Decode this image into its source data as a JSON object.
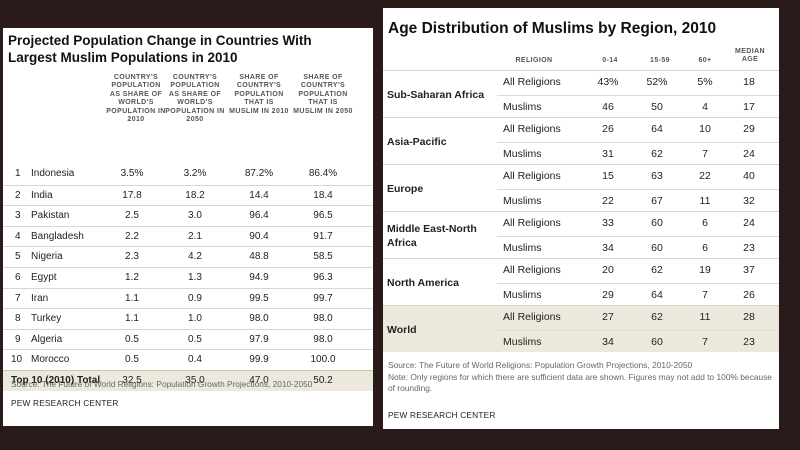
{
  "left": {
    "title": "Projected Population Change in Countries With Largest Muslim Populations in 2010",
    "headers": [
      "Country's population as share of world's population in 2010",
      "Country's population as share of world's population in 2050",
      "Share of country's population that is Muslim in 2010",
      "Share of country's population that is Muslim in 2050"
    ],
    "rows": [
      {
        "rank": "1",
        "country": "Indonesia",
        "v1": "3.5%",
        "v2": "3.2%",
        "v3": "87.2%",
        "v4": "86.4%"
      },
      {
        "rank": "2",
        "country": "India",
        "v1": "17.8",
        "v2": "18.2",
        "v3": "14.4",
        "v4": "18.4"
      },
      {
        "rank": "3",
        "country": "Pakistan",
        "v1": "2.5",
        "v2": "3.0",
        "v3": "96.4",
        "v4": "96.5"
      },
      {
        "rank": "4",
        "country": "Bangladesh",
        "v1": "2.2",
        "v2": "2.1",
        "v3": "90.4",
        "v4": "91.7"
      },
      {
        "rank": "5",
        "country": "Nigeria",
        "v1": "2.3",
        "v2": "4.2",
        "v3": "48.8",
        "v4": "58.5"
      },
      {
        "rank": "6",
        "country": "Egypt",
        "v1": "1.2",
        "v2": "1.3",
        "v3": "94.9",
        "v4": "96.3"
      },
      {
        "rank": "7",
        "country": "Iran",
        "v1": "1.1",
        "v2": "0.9",
        "v3": "99.5",
        "v4": "99.7"
      },
      {
        "rank": "8",
        "country": "Turkey",
        "v1": "1.1",
        "v2": "1.0",
        "v3": "98.0",
        "v4": "98.0"
      },
      {
        "rank": "9",
        "country": "Algeria",
        "v1": "0.5",
        "v2": "0.5",
        "v3": "97.9",
        "v4": "98.0"
      },
      {
        "rank": "10",
        "country": "Morocco",
        "v1": "0.5",
        "v2": "0.4",
        "v3": "99.9",
        "v4": "100.0"
      }
    ],
    "total": {
      "label": "Top 10 (2010) Total",
      "v1": "32.5",
      "v2": "35.0",
      "v3": "47.0",
      "v4": "50.2"
    },
    "source": "Source: The Future of World Religions: Population Growth Projections, 2010-2050",
    "org": "PEW RESEARCH CENTER"
  },
  "right": {
    "title": "Age Distribution of Muslims by Region, 2010",
    "headers": {
      "religion": "Religion",
      "c1": "0-14",
      "c2": "15-59",
      "c3": "60+",
      "c4": "Median age"
    },
    "groups": [
      {
        "region": "Sub-Saharan Africa",
        "rows": [
          {
            "religion": "All Religions",
            "v": [
              "43%",
              "52%",
              "5%",
              "18"
            ]
          },
          {
            "religion": "Muslims",
            "v": [
              "46",
              "50",
              "4",
              "17"
            ]
          }
        ]
      },
      {
        "region": "Asia-Pacific",
        "rows": [
          {
            "religion": "All Religions",
            "v": [
              "26",
              "64",
              "10",
              "29"
            ]
          },
          {
            "religion": "Muslims",
            "v": [
              "31",
              "62",
              "7",
              "24"
            ]
          }
        ]
      },
      {
        "region": "Europe",
        "rows": [
          {
            "religion": "All Religions",
            "v": [
              "15",
              "63",
              "22",
              "40"
            ]
          },
          {
            "religion": "Muslims",
            "v": [
              "22",
              "67",
              "11",
              "32"
            ]
          }
        ]
      },
      {
        "region": "Middle East-North Africa",
        "rows": [
          {
            "religion": "All Religions",
            "v": [
              "33",
              "60",
              "6",
              "24"
            ]
          },
          {
            "religion": "Muslims",
            "v": [
              "34",
              "60",
              "6",
              "23"
            ]
          }
        ]
      },
      {
        "region": "North America",
        "rows": [
          {
            "religion": "All Religions",
            "v": [
              "20",
              "62",
              "19",
              "37"
            ]
          },
          {
            "religion": "Muslims",
            "v": [
              "29",
              "64",
              "7",
              "26"
            ]
          }
        ]
      },
      {
        "region": "World",
        "highlight": true,
        "rows": [
          {
            "religion": "All Religions",
            "v": [
              "27",
              "62",
              "11",
              "28"
            ]
          },
          {
            "religion": "Muslims",
            "v": [
              "34",
              "60",
              "7",
              "23"
            ]
          }
        ]
      }
    ],
    "source": "Source: The Future of World Religions: Population Growth Projections, 2010-2050",
    "note": "Note: Only regions for which there are sufficient data are shown. Figures may not add to 100% because of rounding.",
    "org": "PEW RESEARCH CENTER"
  }
}
